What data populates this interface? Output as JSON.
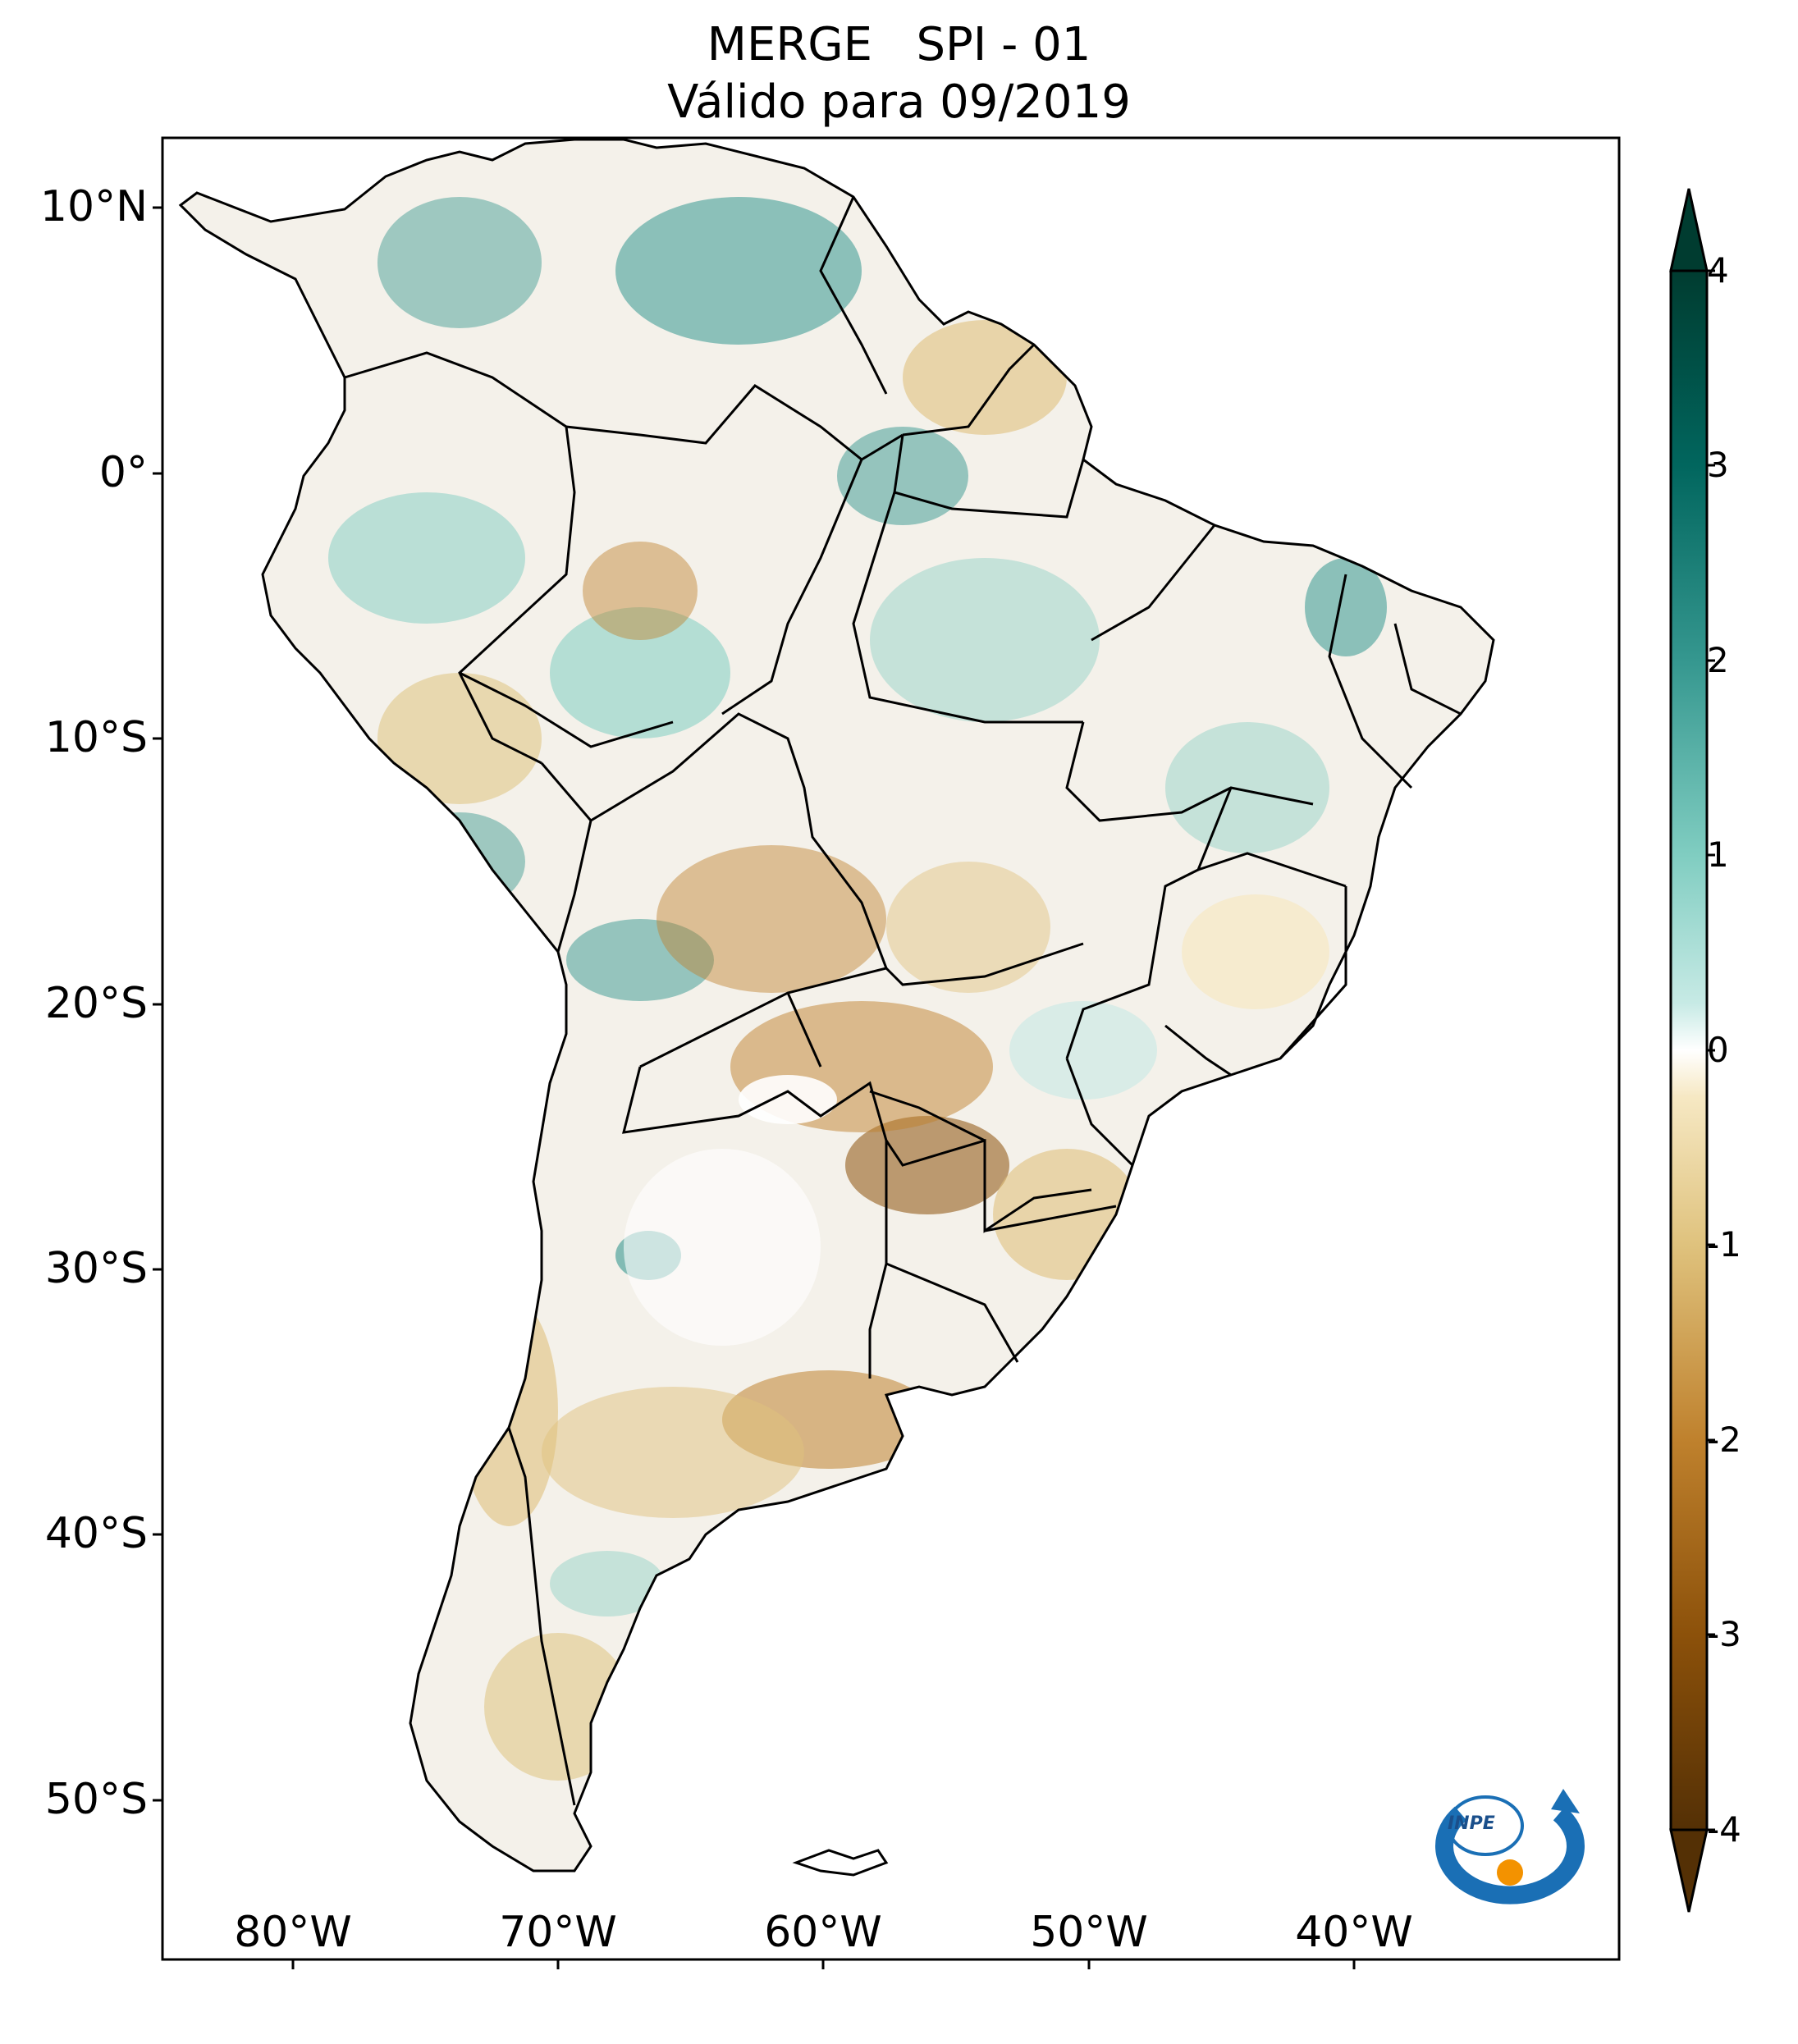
{
  "title": {
    "line1": "MERGE   SPI - 01",
    "line2": "Válido para 09/2019"
  },
  "lat_labels": [
    "10°N",
    "0°",
    "10°S",
    "20°S",
    "30°S",
    "40°S",
    "50°S"
  ],
  "lon_labels": [
    "80°W",
    "70°W",
    "60°W",
    "50°W",
    "40°W"
  ],
  "colorbar": {
    "ticks": [
      "4",
      "3",
      "2",
      "1",
      "0",
      "-1",
      "-2",
      "-3",
      "-4"
    ],
    "min": -4,
    "max": 4,
    "extend": "both",
    "colors": {
      "min": "#543005",
      "n3": "#8c510a",
      "n2": "#bf812d",
      "n1": "#dfc27d",
      "zero": "#ffffff",
      "p1": "#80cdc1",
      "p2": "#35978f",
      "p3": "#01665e",
      "max": "#003c30"
    }
  },
  "logo": {
    "text": "INPE"
  }
}
